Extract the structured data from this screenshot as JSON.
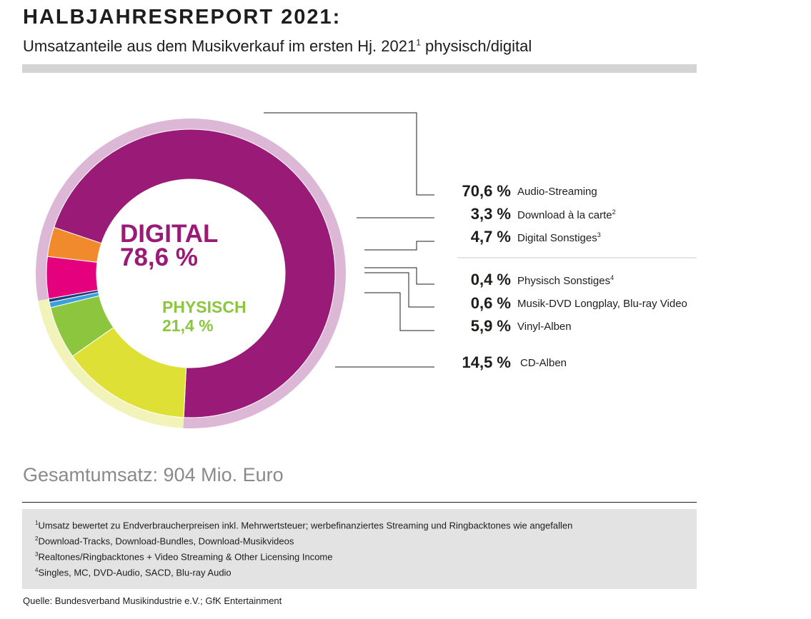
{
  "header": {
    "title": "HALBJAHRESREPORT 2021:",
    "subtitle": "Umsatzanteile aus dem Musikverkauf im ersten Hj. 2021",
    "subtitle_sup": "1",
    "subtitle_suffix": " physisch/digital"
  },
  "center": {
    "digital_label": "DIGITAL",
    "digital_value": "78,6 %",
    "physical_label": "PHYSISCH",
    "physical_value": "21,4 %"
  },
  "colors": {
    "digital": "#9a1a78",
    "digital_ring": "#dcb8d6",
    "physical": "#8cc63f",
    "physical_ring": "#f2f3b8"
  },
  "chart_data": {
    "type": "pie",
    "variant": "donut",
    "groups": [
      {
        "name": "DIGITAL",
        "value": 78.6
      },
      {
        "name": "PHYSISCH",
        "value": 21.4
      }
    ],
    "slices": [
      {
        "label": "Audio-Streaming",
        "sup": "",
        "value": 70.6,
        "display": "70,6 %",
        "group": "DIGITAL",
        "color": "#9a1a78"
      },
      {
        "label": "Download à la carte",
        "sup": "2",
        "value": 3.3,
        "display": "3,3 %",
        "group": "DIGITAL",
        "color": "#f08a2c"
      },
      {
        "label": "Digital Sonstiges",
        "sup": "3",
        "value": 4.7,
        "display": "4,7 %",
        "group": "DIGITAL",
        "color": "#e5007e"
      },
      {
        "label": "Physisch Sonstiges",
        "sup": "4",
        "value": 0.4,
        "display": "0,4 %",
        "group": "PHYSISCH",
        "color": "#1f3f7a"
      },
      {
        "label": "Musik-DVD Longplay, Blu-ray Video",
        "sup": "",
        "value": 0.6,
        "display": "0,6 %",
        "group": "PHYSISCH",
        "color": "#3aa0dc"
      },
      {
        "label": "Vinyl-Alben",
        "sup": "",
        "value": 5.9,
        "display": "5,9 %",
        "group": "PHYSISCH",
        "color": "#8cc63f"
      },
      {
        "label": "CD-Alben",
        "sup": "",
        "value": 14.5,
        "display": "14,5 %",
        "group": "PHYSISCH",
        "color": "#dfe035"
      }
    ]
  },
  "total": "Gesamtumsatz: 904 Mio. Euro",
  "footnotes": [
    {
      "sup": "1",
      "text": "Umsatz bewertet zu Endverbraucherpreisen inkl. Mehrwertsteuer; werbefinanziertes Streaming und Ringbacktones wie angefallen"
    },
    {
      "sup": "2",
      "text": "Download-Tracks, Download-Bundles, Download-Musikvideos"
    },
    {
      "sup": "3",
      "text": "Realtones/Ringbacktones + Video Streaming & Other Licensing Income"
    },
    {
      "sup": "4",
      "text": "Singles, MC, DVD-Audio, SACD, Blu-ray Audio"
    }
  ],
  "source": "Quelle: Bundesverband Musikindustrie e.V.; GfK Entertainment"
}
